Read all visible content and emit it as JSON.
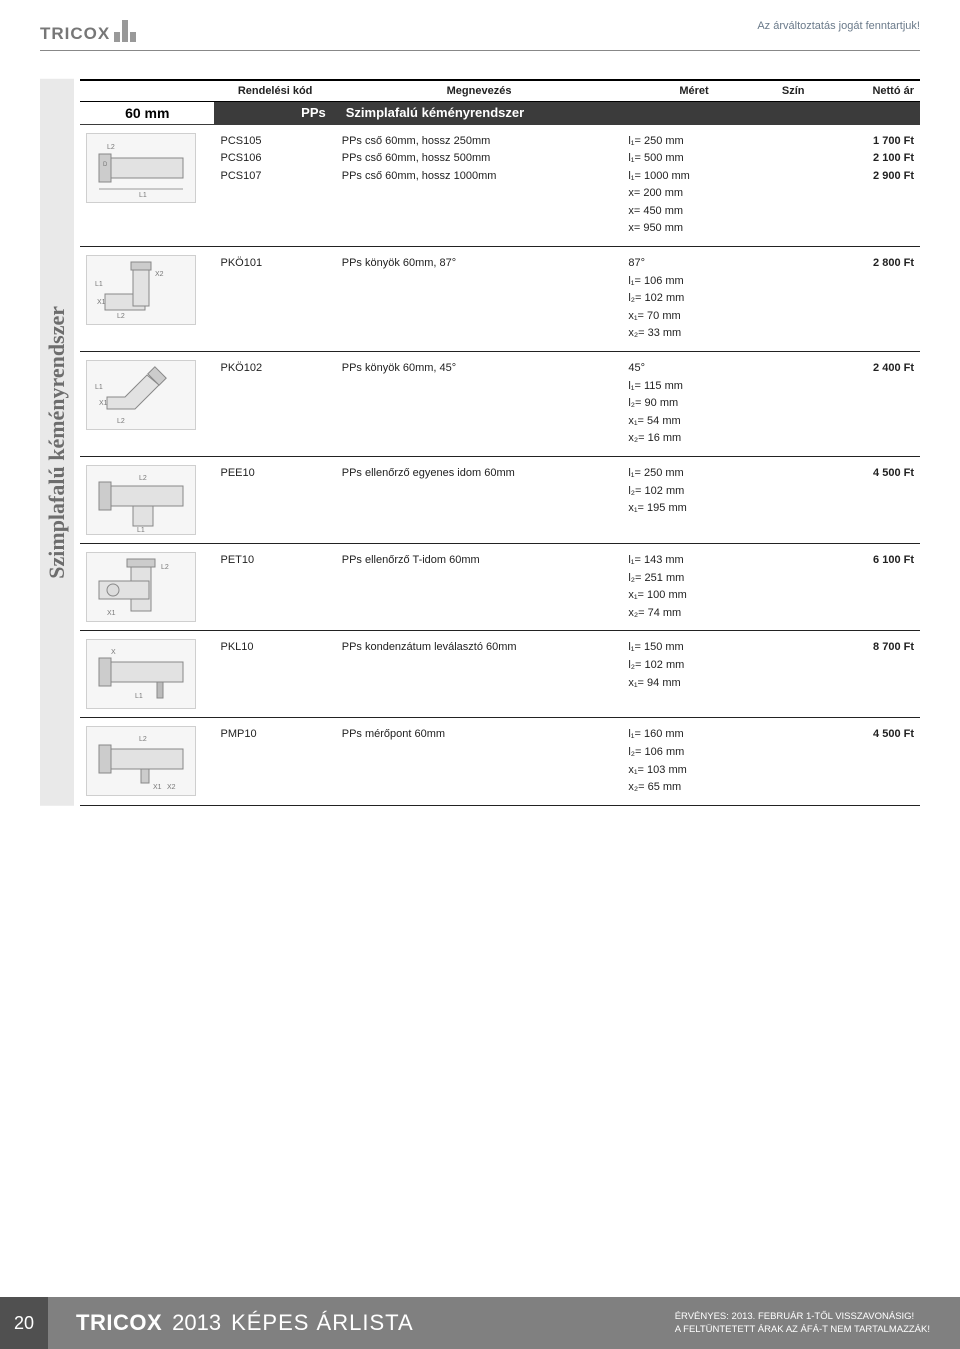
{
  "header": {
    "logo_text": "TRICOX",
    "disclaimer": "Az árváltoztatás jogát fenntartjuk!"
  },
  "side_label": "Szimplafalú kéményrendszer",
  "table_headers": {
    "code": "Rendelési kód",
    "name": "Megnevezés",
    "size": "Méret",
    "color": "Szín",
    "price": "Nettó ár"
  },
  "section": {
    "size_label": "60 mm",
    "badge": "PPs",
    "title": "Szimplafalú kéményrendszer"
  },
  "rows": [
    {
      "codes": [
        "PCS105",
        "PCS106",
        "PCS107"
      ],
      "names": [
        "PPs cső 60mm, hossz 250mm",
        "PPs cső 60mm, hossz 500mm",
        "PPs cső 60mm, hossz 1000mm"
      ],
      "merets": [
        "l₁=  250 mm",
        "l₁=  500 mm",
        "l₁= 1000 mm",
        "x=  200 mm",
        "x=  450 mm",
        "x=  950 mm"
      ],
      "prices": [
        "1 700 Ft",
        "2 100 Ft",
        "2 900 Ft"
      ],
      "svg": "pipe"
    },
    {
      "codes": [
        "PKÖ101"
      ],
      "names": [
        "PPs könyök 60mm, 87°"
      ],
      "merets": [
        "87°",
        "l₁= 106 mm",
        "l₂= 102 mm",
        "x₁=  70 mm",
        "x₂=  33 mm"
      ],
      "prices": [
        "2 800 Ft"
      ],
      "svg": "elbow87"
    },
    {
      "codes": [
        "PKÖ102"
      ],
      "names": [
        "PPs könyök 60mm, 45°"
      ],
      "merets": [
        "45°",
        "l₁= 115 mm",
        "l₂=  90 mm",
        "x₁=  54 mm",
        "x₂=  16 mm"
      ],
      "prices": [
        "2 400 Ft"
      ],
      "svg": "elbow45"
    },
    {
      "codes": [
        "PEE10"
      ],
      "names": [
        "PPs ellenőrző egyenes idom 60mm"
      ],
      "merets": [
        "l₁= 250 mm",
        "l₂= 102 mm",
        "x₁= 195 mm"
      ],
      "prices": [
        "4 500 Ft"
      ],
      "svg": "inspect"
    },
    {
      "codes": [
        "PET10"
      ],
      "names": [
        "PPs ellenőrző T-idom 60mm"
      ],
      "merets": [
        "l₁= 143 mm",
        "l₂= 251 mm",
        "x₁= 100 mm",
        "x₂=  74 mm"
      ],
      "prices": [
        "6 100 Ft"
      ],
      "svg": "tee"
    },
    {
      "codes": [
        "PKL10"
      ],
      "names": [
        "PPs kondenzátum leválasztó 60mm"
      ],
      "merets": [
        "l₁= 150 mm",
        "l₂= 102 mm",
        "x₁=  94 mm"
      ],
      "prices": [
        "8 700 Ft"
      ],
      "svg": "condens"
    },
    {
      "codes": [
        "PMP10"
      ],
      "names": [
        "PPs mérőpont 60mm"
      ],
      "merets": [
        "l₁= 160 mm",
        "l₂= 106 mm",
        "x₁= 103 mm",
        "x₂=  65 mm"
      ],
      "prices": [
        "4 500 Ft"
      ],
      "svg": "measure"
    }
  ],
  "footer": {
    "page_num": "20",
    "brand": "TRICOX",
    "year": "2013",
    "rest": "KÉPES ÁRLISTA",
    "note1": "ÉRVÉNYES: 2013. FEBRUÁR 1-TŐL VISSZAVONÁSIG!",
    "note2": "A FELTÜNTETETT ÁRAK AZ ÁFÁ-T NEM TARTALMAZZÁK!"
  },
  "colors": {
    "section_bg": "#3b3b3b",
    "footer_bg": "#808080",
    "pagenum_bg": "#505050",
    "side_bg": "#e9e9e9",
    "side_fg": "#6d6d6d"
  }
}
